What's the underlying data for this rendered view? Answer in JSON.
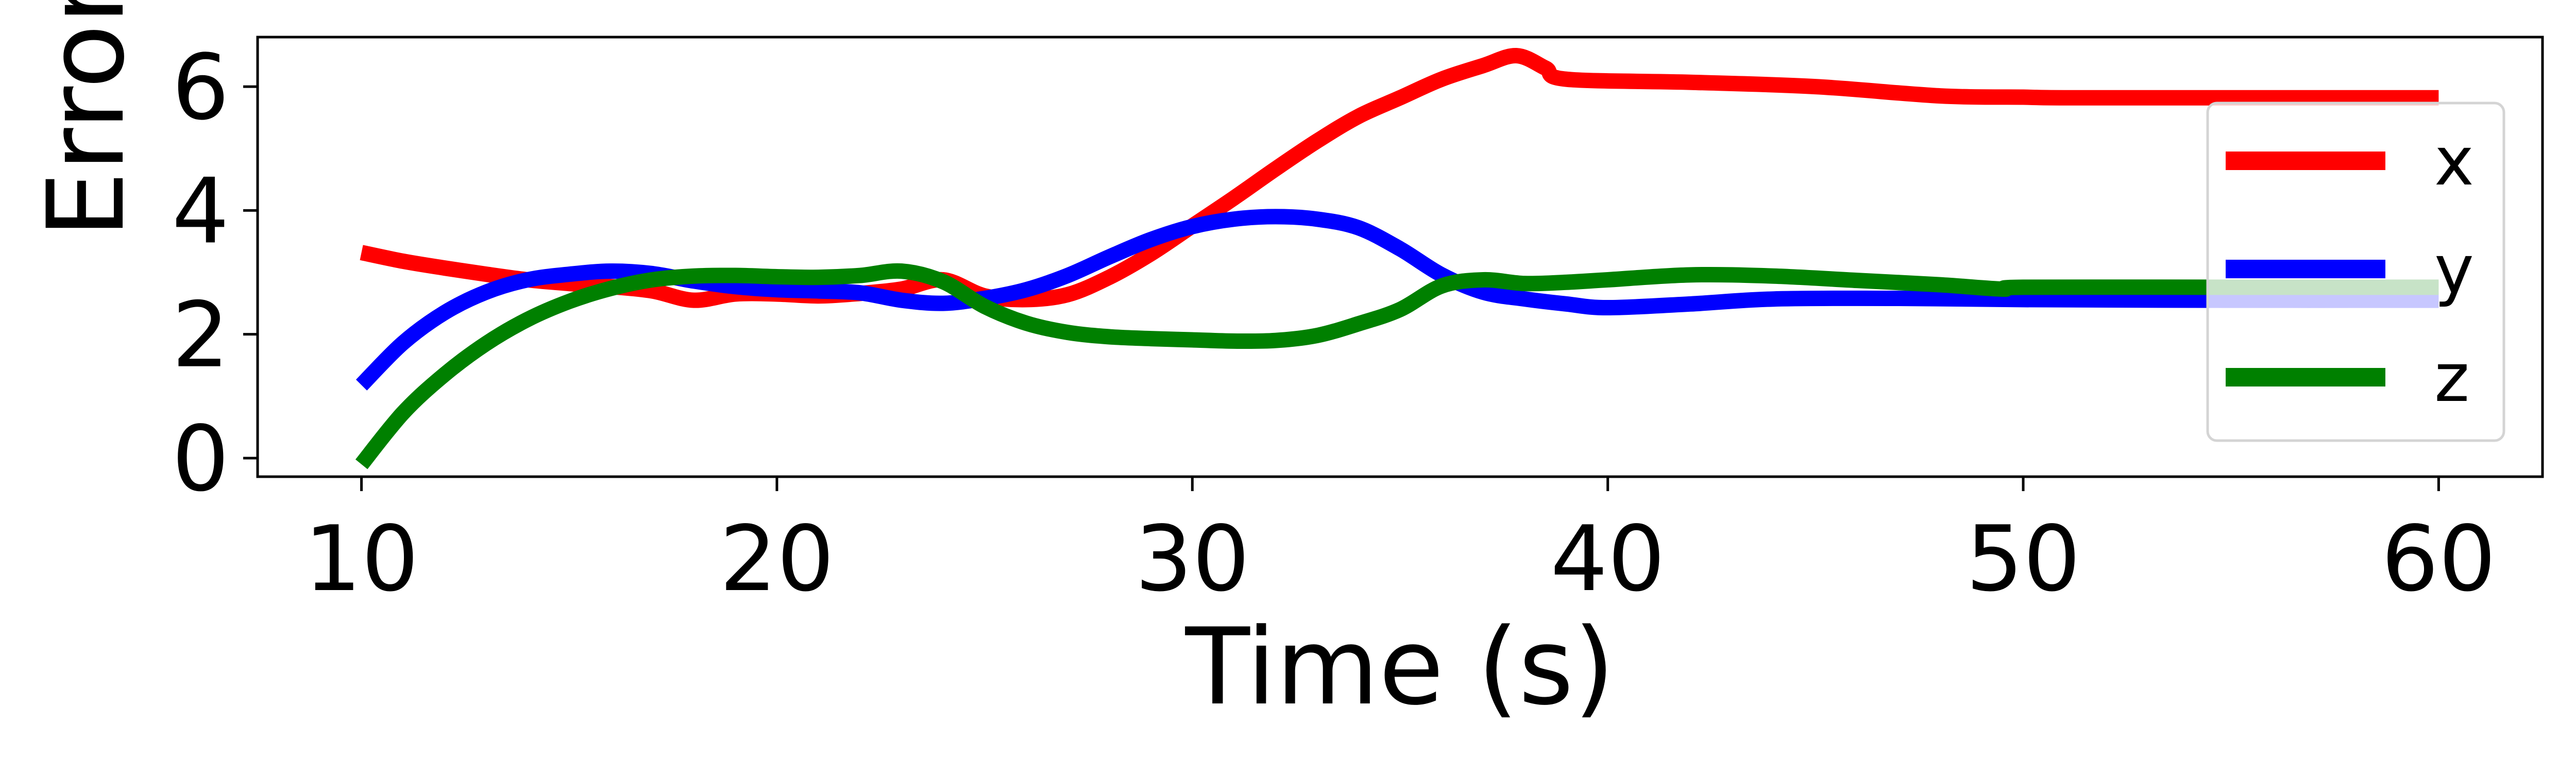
{
  "chart_data": {
    "type": "line",
    "title": "",
    "xlabel": "Time (s)",
    "ylabel": "Error (m)",
    "xlim": [
      7.5,
      62.5
    ],
    "ylim": [
      -0.3,
      6.8
    ],
    "xticks": [
      10,
      20,
      30,
      40,
      50,
      60
    ],
    "yticks": [
      0,
      2,
      4,
      6
    ],
    "grid": false,
    "legend_position": "right",
    "series": [
      {
        "name": "x",
        "color": "#ff0000",
        "points": [
          [
            10,
            3.32
          ],
          [
            11,
            3.18
          ],
          [
            12,
            3.07
          ],
          [
            13,
            2.97
          ],
          [
            14,
            2.88
          ],
          [
            15,
            2.82
          ],
          [
            16,
            2.77
          ],
          [
            17,
            2.7
          ],
          [
            18,
            2.55
          ],
          [
            19,
            2.65
          ],
          [
            20,
            2.65
          ],
          [
            21,
            2.62
          ],
          [
            22,
            2.66
          ],
          [
            23,
            2.73
          ],
          [
            24,
            2.88
          ],
          [
            25,
            2.62
          ],
          [
            26,
            2.56
          ],
          [
            27,
            2.64
          ],
          [
            28,
            2.92
          ],
          [
            29,
            3.3
          ],
          [
            30,
            3.75
          ],
          [
            31,
            4.2
          ],
          [
            32,
            4.67
          ],
          [
            33,
            5.12
          ],
          [
            34,
            5.52
          ],
          [
            35,
            5.82
          ],
          [
            36,
            6.12
          ],
          [
            37,
            6.34
          ],
          [
            37.8,
            6.5
          ],
          [
            38.5,
            6.3
          ],
          [
            39,
            6.12
          ],
          [
            42,
            6.07
          ],
          [
            45,
            6.0
          ],
          [
            48,
            5.85
          ],
          [
            50,
            5.83
          ],
          [
            51,
            5.82
          ],
          [
            55,
            5.82
          ],
          [
            60,
            5.82
          ]
        ]
      },
      {
        "name": "y",
        "color": "#0000ff",
        "points": [
          [
            10,
            1.18
          ],
          [
            11,
            1.86
          ],
          [
            12,
            2.35
          ],
          [
            13,
            2.68
          ],
          [
            14,
            2.88
          ],
          [
            15,
            2.97
          ],
          [
            16,
            3.02
          ],
          [
            17,
            2.98
          ],
          [
            18,
            2.86
          ],
          [
            19,
            2.77
          ],
          [
            20,
            2.72
          ],
          [
            21,
            2.7
          ],
          [
            22,
            2.67
          ],
          [
            23,
            2.55
          ],
          [
            24,
            2.5
          ],
          [
            25,
            2.58
          ],
          [
            26,
            2.72
          ],
          [
            27,
            2.95
          ],
          [
            28,
            3.25
          ],
          [
            29,
            3.53
          ],
          [
            30,
            3.74
          ],
          [
            31,
            3.86
          ],
          [
            32,
            3.9
          ],
          [
            33,
            3.86
          ],
          [
            34,
            3.72
          ],
          [
            35,
            3.38
          ],
          [
            36,
            2.96
          ],
          [
            37,
            2.68
          ],
          [
            38,
            2.57
          ],
          [
            39,
            2.49
          ],
          [
            40,
            2.43
          ],
          [
            42,
            2.49
          ],
          [
            44,
            2.57
          ],
          [
            47,
            2.58
          ],
          [
            50,
            2.56
          ],
          [
            55,
            2.55
          ],
          [
            60,
            2.55
          ]
        ]
      },
      {
        "name": "z",
        "color": "#008000",
        "points": [
          [
            10,
            -0.1
          ],
          [
            11,
            0.73
          ],
          [
            12,
            1.35
          ],
          [
            13,
            1.85
          ],
          [
            14,
            2.24
          ],
          [
            15,
            2.53
          ],
          [
            16,
            2.74
          ],
          [
            17,
            2.88
          ],
          [
            18,
            2.94
          ],
          [
            19,
            2.95
          ],
          [
            20,
            2.93
          ],
          [
            21,
            2.92
          ],
          [
            22,
            2.95
          ],
          [
            23,
            3.02
          ],
          [
            24,
            2.85
          ],
          [
            25,
            2.45
          ],
          [
            26,
            2.18
          ],
          [
            27,
            2.03
          ],
          [
            28,
            1.96
          ],
          [
            29,
            1.93
          ],
          [
            30,
            1.91
          ],
          [
            31,
            1.89
          ],
          [
            32,
            1.9
          ],
          [
            33,
            1.98
          ],
          [
            34,
            2.17
          ],
          [
            35,
            2.4
          ],
          [
            36,
            2.78
          ],
          [
            37,
            2.88
          ],
          [
            38,
            2.82
          ],
          [
            39,
            2.84
          ],
          [
            40,
            2.88
          ],
          [
            42,
            2.96
          ],
          [
            44,
            2.94
          ],
          [
            46,
            2.87
          ],
          [
            48,
            2.8
          ],
          [
            49.5,
            2.73
          ],
          [
            50,
            2.76
          ],
          [
            55,
            2.76
          ],
          [
            60,
            2.76
          ]
        ]
      }
    ]
  }
}
